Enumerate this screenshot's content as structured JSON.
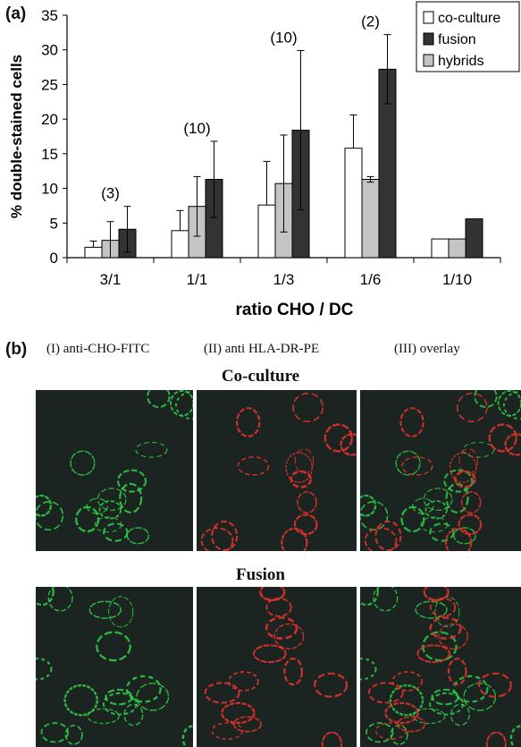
{
  "panel_a_label": "(a)",
  "panel_b_label": "(b)",
  "chart_data": {
    "type": "bar",
    "xlabel": "ratio CHO / DC",
    "ylabel": "% double-stained cells",
    "ylim": [
      0,
      35
    ],
    "yticks": [
      0,
      5,
      10,
      15,
      20,
      25,
      30,
      35
    ],
    "categories": [
      "3/1",
      "1/1",
      "1/3",
      "1/6",
      "1/10"
    ],
    "legend_position": "top-right",
    "series": [
      {
        "name": "co-culture",
        "color": "#ffffff",
        "values": [
          1.5,
          3.9,
          7.6,
          15.8,
          2.7
        ],
        "errors": [
          0.9,
          2.9,
          6.3,
          4.8,
          null
        ]
      },
      {
        "name": "hybrids",
        "color": "#c4c4c4",
        "values": [
          2.5,
          7.4,
          10.7,
          11.3,
          2.7
        ],
        "errors": [
          2.7,
          4.3,
          7.0,
          0.4,
          null
        ]
      },
      {
        "name": "fusion",
        "color": "#333333",
        "values": [
          4.1,
          11.3,
          18.4,
          27.2,
          5.6
        ],
        "errors": [
          3.3,
          5.5,
          11.5,
          5.0,
          null
        ]
      }
    ],
    "annotations": [
      "(3)",
      "(10)",
      "(10)",
      "(2)",
      ""
    ],
    "legend_order": [
      "co-culture",
      "fusion",
      "hybrids"
    ]
  },
  "columns": [
    "(I) anti-CHO-FITC",
    "(II) anti HLA-DR-PE",
    "(III) overlay"
  ],
  "rows": [
    "Co-culture",
    "Fusion"
  ],
  "colors": {
    "green_stain": "#2fd24a",
    "red_stain": "#e3322c",
    "background": "#1b2420"
  }
}
